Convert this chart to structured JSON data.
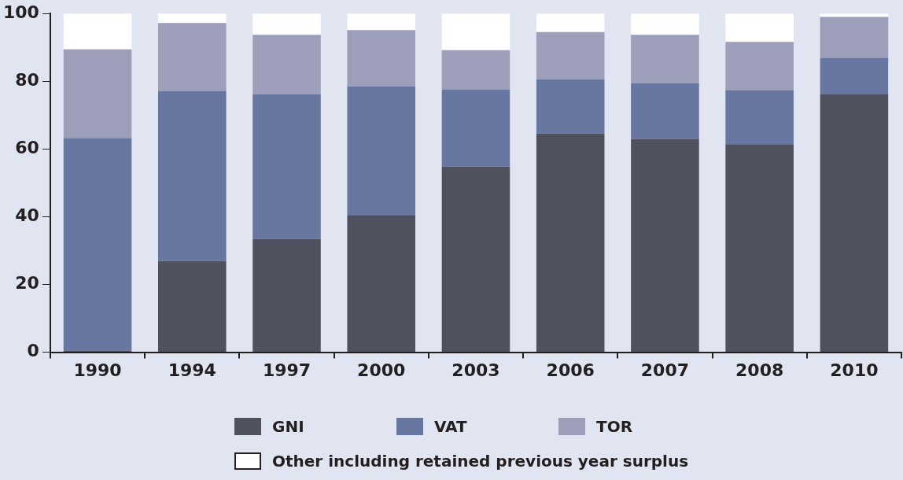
{
  "chart_data": {
    "type": "bar",
    "stacked": true,
    "categories": [
      "1990",
      "1994",
      "1997",
      "2000",
      "2003",
      "2006",
      "2007",
      "2008",
      "2010"
    ],
    "series": [
      {
        "name": "GNI",
        "color": "#4f515f",
        "values": [
          0.5,
          27.0,
          33.5,
          40.5,
          54.8,
          64.6,
          63.0,
          61.4,
          76.1
        ]
      },
      {
        "name": "VAT",
        "color": "#6876a2",
        "values": [
          62.7,
          50.1,
          42.6,
          38.0,
          22.7,
          16.0,
          16.4,
          15.9,
          10.8
        ]
      },
      {
        "name": "TOR",
        "color": "#9d9eb9",
        "values": [
          26.2,
          20.1,
          17.6,
          16.6,
          11.7,
          13.9,
          14.3,
          14.3,
          12.1
        ]
      },
      {
        "name": "Other including retained previous year surplus",
        "color": "#ffffff",
        "values": [
          10.6,
          2.8,
          6.3,
          4.9,
          10.8,
          5.5,
          6.3,
          8.4,
          1.0
        ]
      }
    ],
    "ylim": [
      0,
      100
    ],
    "yticks": [
      0,
      20,
      40,
      60,
      80,
      100
    ],
    "grid": false,
    "legend": "bottom"
  }
}
